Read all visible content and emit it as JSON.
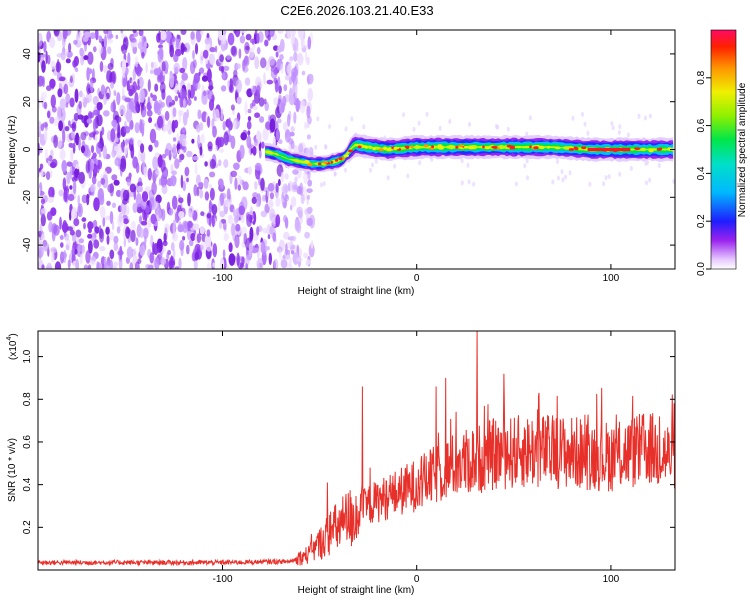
{
  "title": "C2E6.2026.103.21.40.E33",
  "chart_data": [
    {
      "type": "heatmap",
      "xlabel": "Height of straight line (km)",
      "ylabel": "Frequency (Hz)",
      "xlim": [
        -195,
        133
      ],
      "ylim": [
        -50,
        50
      ],
      "x_ticks": [
        -100,
        0,
        100
      ],
      "y_ticks": [
        -40,
        -20,
        0,
        20,
        40
      ],
      "colorbar": {
        "label": "Normalized spectral amplitude",
        "range": [
          0,
          1
        ],
        "ticks": [
          "0.0",
          "0.2",
          "0.4",
          "0.6",
          "0.8"
        ],
        "tick_values": [
          0.0,
          0.2,
          0.4,
          0.6,
          0.8
        ]
      },
      "noise_region": [
        -195,
        -60
      ],
      "ridge": [
        {
          "x": -77,
          "f": -1
        },
        {
          "x": -72,
          "f": -2
        },
        {
          "x": -66,
          "f": -4
        },
        {
          "x": -60,
          "f": -5
        },
        {
          "x": -54,
          "f": -6
        },
        {
          "x": -48,
          "f": -6
        },
        {
          "x": -42,
          "f": -5
        },
        {
          "x": -38,
          "f": -4
        },
        {
          "x": -35,
          "f": -1
        },
        {
          "x": -32,
          "f": 2
        },
        {
          "x": -25,
          "f": 1
        },
        {
          "x": -15,
          "f": 0
        },
        {
          "x": 0,
          "f": 1
        },
        {
          "x": 15,
          "f": 1
        },
        {
          "x": 30,
          "f": 1
        },
        {
          "x": 50,
          "f": 1
        },
        {
          "x": 70,
          "f": 1
        },
        {
          "x": 90,
          "f": 0
        },
        {
          "x": 110,
          "f": 0
        },
        {
          "x": 133,
          "f": 0
        }
      ]
    },
    {
      "type": "line",
      "xlabel": "Height of straight line (km)",
      "ylabel": "SNR (10 * v/v)",
      "y_scale_label": "(x10",
      "y_scale_exp": "4",
      "y_scale_close": ")",
      "xlim": [
        -195,
        133
      ],
      "ylim": [
        0,
        1.12
      ],
      "x_ticks": [
        -100,
        0,
        100
      ],
      "y_ticks": [
        0.2,
        0.4,
        0.6,
        0.8,
        1.0
      ],
      "y_tick_labels": [
        "0.2",
        "0.4",
        "0.6",
        "0.8",
        "1.0"
      ],
      "series": [
        {
          "name": "SNR",
          "color": "#e8302a",
          "envelope": [
            {
              "x": -195,
              "y": 0.035
            },
            {
              "x": -100,
              "y": 0.035
            },
            {
              "x": -65,
              "y": 0.04
            },
            {
              "x": -55,
              "y": 0.08
            },
            {
              "x": -45,
              "y": 0.18
            },
            {
              "x": -35,
              "y": 0.25
            },
            {
              "x": -25,
              "y": 0.32
            },
            {
              "x": -10,
              "y": 0.38
            },
            {
              "x": 0,
              "y": 0.42
            },
            {
              "x": 20,
              "y": 0.52
            },
            {
              "x": 40,
              "y": 0.57
            },
            {
              "x": 60,
              "y": 0.59
            },
            {
              "x": 80,
              "y": 0.58
            },
            {
              "x": 100,
              "y": 0.56
            },
            {
              "x": 120,
              "y": 0.6
            },
            {
              "x": 133,
              "y": 0.55
            }
          ],
          "spikes": [
            {
              "x": -28,
              "y": 0.86
            },
            {
              "x": -24,
              "y": 0.48
            },
            {
              "x": 10,
              "y": 0.86
            },
            {
              "x": 15,
              "y": 0.9
            },
            {
              "x": 31,
              "y": 1.12
            },
            {
              "x": 45,
              "y": 0.92
            },
            {
              "x": 63,
              "y": 0.83
            },
            {
              "x": 125,
              "y": 0.72
            }
          ]
        }
      ]
    }
  ]
}
